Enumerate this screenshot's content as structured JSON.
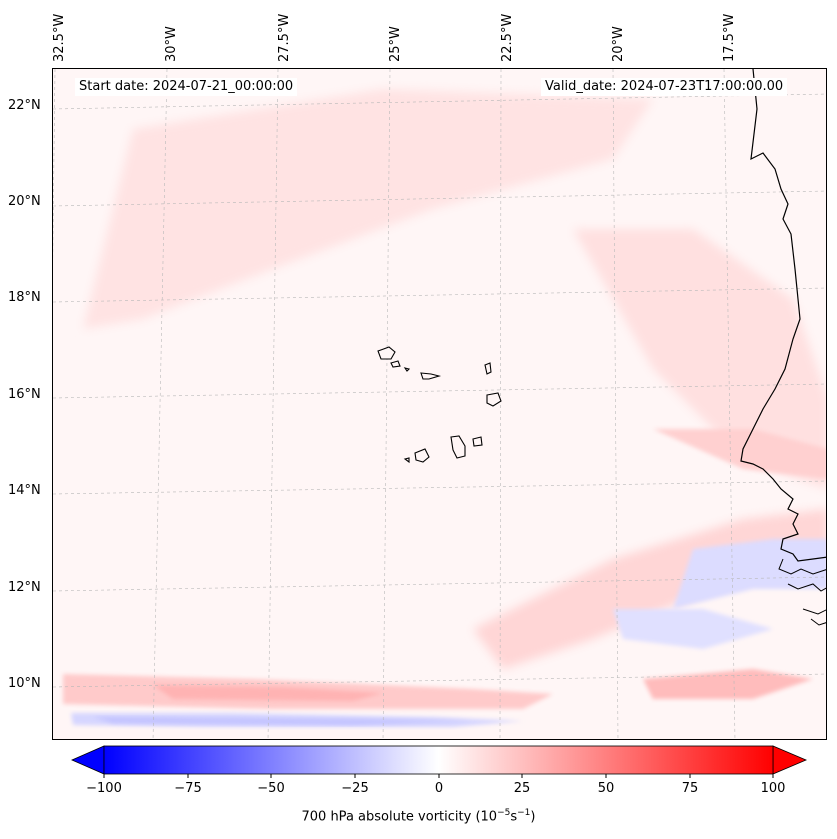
{
  "header": {
    "start_date": "Start date: 2024-07-21_00:00:00",
    "valid_date": "Valid_date: 2024-07-23T17:00:00.00"
  },
  "map": {
    "longitude_labels": [
      "32.5°W",
      "30°W",
      "27.5°W",
      "25°W",
      "22.5°W",
      "20°W",
      "17.5°W"
    ],
    "latitude_labels": [
      "22°N",
      "20°N",
      "18°N",
      "16°N",
      "14°N",
      "12°N",
      "10°N"
    ],
    "gridlines": true
  },
  "colorbar": {
    "tick_labels": [
      "−100",
      "−75",
      "−50",
      "−25",
      "0",
      "25",
      "50",
      "75",
      "100"
    ],
    "label": "700 hPa absolute vorticity (10",
    "label_exp1": "−5",
    "label_mid": "s",
    "label_exp2": "−1",
    "label_end": ")",
    "min_color": "#0000ff",
    "mid_color": "#ffffff",
    "max_color": "#ff0000"
  }
}
